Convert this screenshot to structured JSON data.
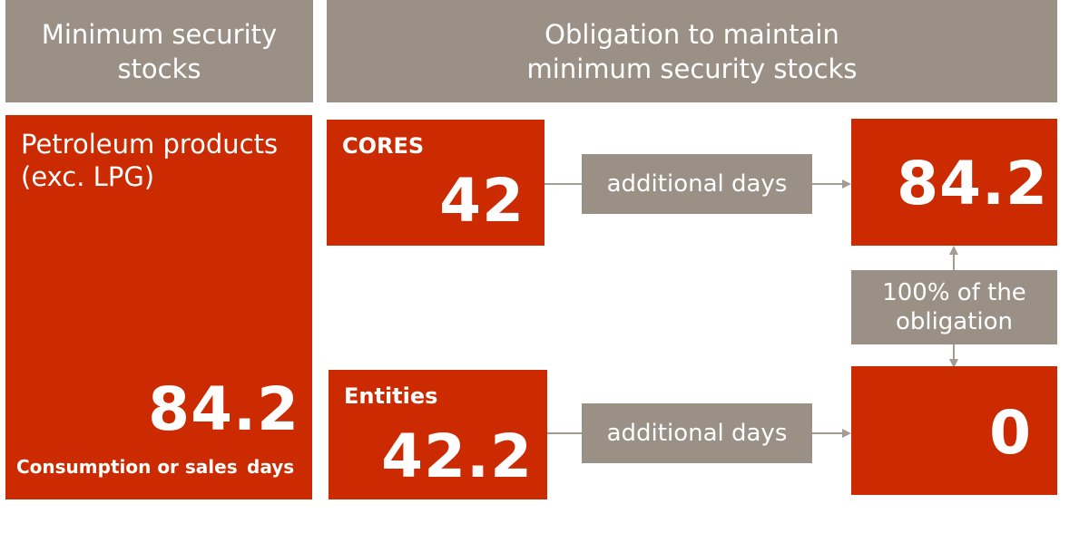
{
  "headers": {
    "left": [
      "Minimum security",
      "stocks"
    ],
    "right": [
      "Obligation to maintain",
      "minimum security stocks"
    ]
  },
  "product": {
    "title_line1": "Petroleum products",
    "title_line2": "(exc. LPG)",
    "value": "84.2",
    "basis_label": "Consumption or sales",
    "unit_label": "days"
  },
  "cores": {
    "label": "CORES",
    "value": "42",
    "connector_label": "additional days",
    "result_value": "84.2"
  },
  "entities": {
    "label": "Entities",
    "value": "42.2",
    "connector_label": "additional days",
    "result_value": "0"
  },
  "obligation": {
    "line1": "100% of the",
    "line2": "obligation"
  },
  "colors": {
    "accent_red": "#cc2a00",
    "neutral_gray": "#9a9085",
    "line_gray": "#a49c93"
  }
}
